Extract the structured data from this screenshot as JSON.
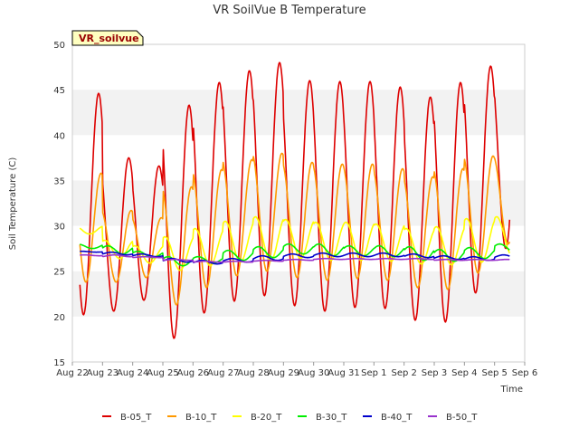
{
  "chart_data": {
    "type": "line",
    "title": "VR SoilVue B Temperature",
    "xlabel": "Time",
    "ylabel": "Soil Temperature (C)",
    "station_badge": "VR_soilvue",
    "ylim": [
      15,
      50
    ],
    "y_ticks": [
      15,
      20,
      25,
      30,
      35,
      40,
      45,
      50
    ],
    "x_range_days": [
      "Aug 22",
      "Sep 6"
    ],
    "x_ticks": [
      "Aug 22",
      "Aug 23",
      "Aug 24",
      "Aug 25",
      "Aug 26",
      "Aug 27",
      "Aug 28",
      "Aug 29",
      "Aug 30",
      "Aug 31",
      "Sep 1",
      "Sep 2",
      "Sep 3",
      "Sep 4",
      "Sep 5",
      "Sep 6"
    ],
    "grid": "horizontal bands",
    "legend_position": "bottom",
    "days": [
      "Aug 22",
      "Aug 23",
      "Aug 24",
      "Aug 25",
      "Aug 26",
      "Aug 27",
      "Aug 28",
      "Aug 29",
      "Aug 30",
      "Aug 31",
      "Sep 1",
      "Sep 2",
      "Sep 3",
      "Sep 4",
      "Sep 5"
    ],
    "series": [
      {
        "name": "B-05_T",
        "color": "#dd0000",
        "daily_min": [
          20.2,
          20.6,
          21.8,
          17.6,
          20.4,
          21.7,
          22.3,
          21.2,
          20.6,
          21.0,
          20.9,
          19.6,
          19.4,
          22.6,
          27.5
        ],
        "daily_max": [
          44.6,
          37.5,
          36.6,
          43.3,
          45.8,
          47.1,
          48.0,
          46.0,
          45.9,
          45.9,
          45.3,
          44.2,
          45.8,
          47.6,
          47.6
        ]
      },
      {
        "name": "B-10_T",
        "color": "#ff9900",
        "daily_min": [
          23.8,
          23.8,
          24.3,
          21.3,
          23.2,
          24.5,
          25.0,
          24.3,
          24.0,
          24.2,
          24.0,
          23.2,
          23.0,
          24.8,
          28.0
        ],
        "daily_max": [
          35.8,
          31.7,
          30.9,
          34.3,
          36.2,
          37.3,
          38.0,
          37.0,
          36.8,
          36.8,
          36.3,
          35.4,
          36.3,
          37.7,
          37.7
        ]
      },
      {
        "name": "B-20_T",
        "color": "#ffff00",
        "daily_min": [
          29.1,
          26.4,
          25.9,
          25.1,
          25.6,
          26.0,
          26.1,
          26.4,
          26.2,
          26.2,
          26.1,
          25.8,
          25.7,
          26.0,
          26.8
        ],
        "daily_max": [
          30.0,
          28.4,
          27.8,
          28.8,
          29.7,
          30.5,
          31.0,
          30.7,
          30.4,
          30.4,
          30.2,
          29.7,
          29.9,
          30.8,
          31.0
        ]
      },
      {
        "name": "B-30_T",
        "color": "#00ee00",
        "daily_min": [
          27.5,
          26.9,
          26.5,
          25.6,
          25.9,
          26.2,
          26.5,
          26.9,
          26.7,
          26.7,
          26.6,
          26.2,
          26.1,
          26.4,
          27.1
        ],
        "daily_max": [
          28.0,
          27.8,
          27.2,
          26.6,
          26.6,
          27.3,
          27.7,
          28.0,
          28.0,
          27.8,
          27.8,
          27.7,
          27.4,
          27.6,
          28.0
        ]
      },
      {
        "name": "B-40_T",
        "color": "#0000cc",
        "daily_min": [
          27.1,
          26.8,
          26.6,
          26.0,
          25.8,
          26.0,
          26.2,
          26.5,
          26.6,
          26.6,
          26.6,
          26.5,
          26.3,
          26.2,
          26.4
        ],
        "daily_max": [
          27.2,
          27.1,
          26.9,
          26.4,
          26.2,
          26.4,
          26.7,
          26.9,
          27.0,
          27.0,
          27.0,
          26.9,
          26.7,
          26.6,
          26.8
        ]
      },
      {
        "name": "B-50_T",
        "color": "#9933cc",
        "daily_min": [
          26.7,
          26.6,
          26.5,
          26.2,
          26.0,
          26.0,
          26.1,
          26.2,
          26.3,
          26.3,
          26.3,
          26.3,
          26.2,
          26.2,
          26.2
        ],
        "daily_max": [
          26.8,
          26.8,
          26.6,
          26.3,
          26.1,
          26.1,
          26.2,
          26.3,
          26.4,
          26.4,
          26.4,
          26.4,
          26.3,
          26.3,
          26.3
        ]
      }
    ]
  }
}
